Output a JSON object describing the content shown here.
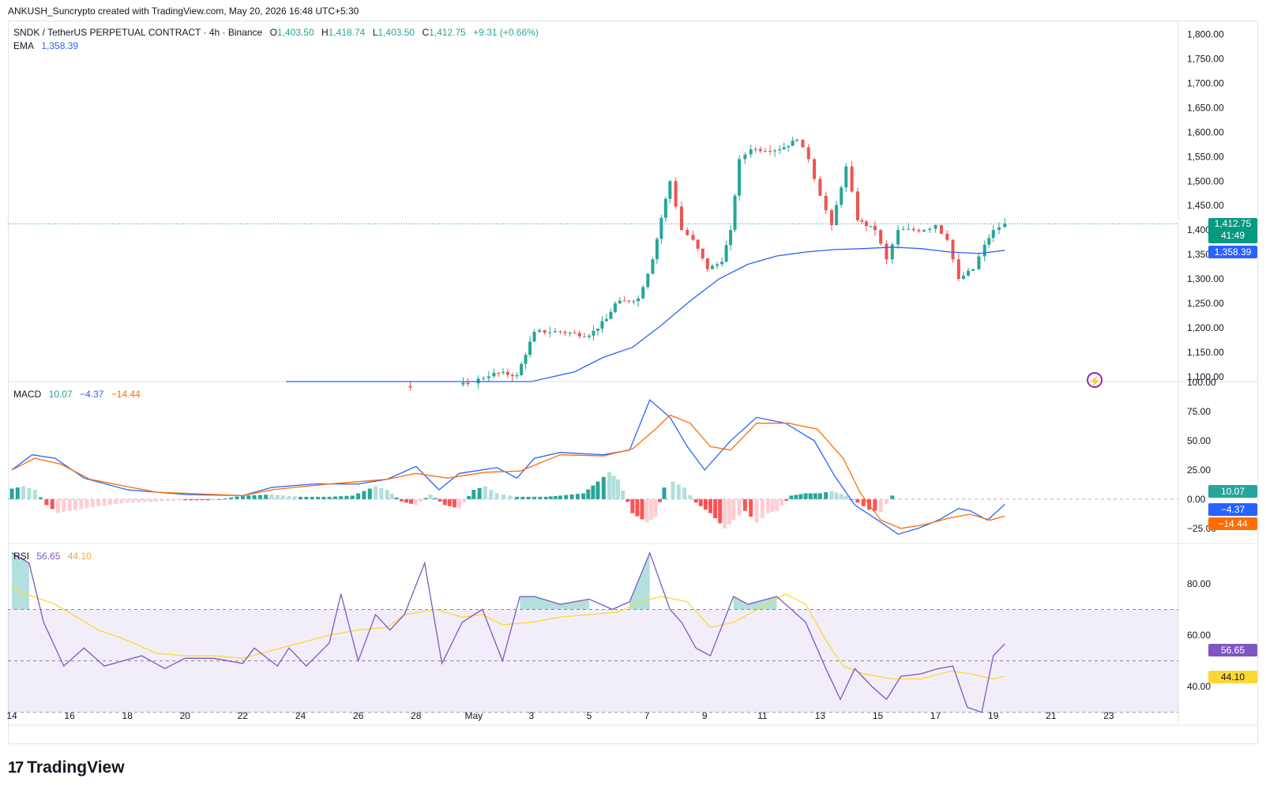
{
  "credit": "ANKUSH_Suncrypto created with TradingView.com, May 20, 2026 16:48 UTC+5:30",
  "header": {
    "symbol": "SNDK / TetherUS PERPETUAL CONTRACT · 4h · Binance",
    "o_label": "O",
    "o": "1,403.50",
    "h_label": "H",
    "h": "1,418.74",
    "l_label": "L",
    "l": "1,403.50",
    "c_label": "C",
    "c": "1,412.75",
    "change": "+9.31 (+0.66%)",
    "ema_label": "EMA",
    "ema_value": "1,358.39"
  },
  "macd_legend": {
    "label": "MACD",
    "hist": "10.07",
    "macd": "−4.37",
    "signal": "−14.44"
  },
  "rsi_legend": {
    "label": "RSI",
    "rsi": "56.65",
    "ma": "44.10"
  },
  "price_tags": {
    "last": "1,412.75",
    "countdown": "41:49",
    "ema": "1,358.39",
    "macd_hist": "10.07",
    "macd": "−4.37",
    "macd_signal": "−14.44",
    "rsi": "56.65",
    "rsi_ma": "44.10"
  },
  "colors": {
    "up": "#26a69a",
    "down": "#ef5350",
    "ema": "#2962ff",
    "macd": "#2962ff",
    "signal": "#ff6d00",
    "rsi": "#7e57c2",
    "rsi_ma": "#fdd835",
    "grid": "#f0f3fa",
    "axis_text": "#131722"
  },
  "brand": "TradingView",
  "chart_data": [
    {
      "type": "candlestick",
      "title": "SNDK / TetherUS PERPETUAL CONTRACT · 4h · Binance",
      "x_ticks": [
        "14",
        "16",
        "18",
        "20",
        "22",
        "24",
        "26",
        "28",
        "May",
        "3",
        "5",
        "7",
        "9",
        "11",
        "13",
        "15",
        "17",
        "19",
        "21",
        "23"
      ],
      "y_ticks": [
        "1,800.00",
        "1,750.00",
        "1,700.00",
        "1,650.00",
        "1,600.00",
        "1,550.00",
        "1,500.00",
        "1,450.00",
        "1,400.00",
        "1,350.00",
        "1,300.00",
        "1,250.00",
        "1,200.00",
        "1,150.00",
        "1,100.00"
      ],
      "ylim": [
        1090,
        1822
      ],
      "last_close": 1412.75,
      "segments": [
        {
          "day": 1.5,
          "open": 1040,
          "close": 1040,
          "dir": 0
        },
        {
          "day": 15.8,
          "open": 1075,
          "close": 1085,
          "dir": 0
        },
        {
          "day": 16.7,
          "open": 1085,
          "close": 1108,
          "dir": 1
        },
        {
          "day": 17.5,
          "open": 1108,
          "close": 1103,
          "dir": 0
        },
        {
          "day": 18.1,
          "open": 1103,
          "close": 1192,
          "dir": 1
        },
        {
          "day": 19.0,
          "open": 1192,
          "close": 1192,
          "dir": 0
        },
        {
          "day": 20.0,
          "open": 1192,
          "close": 1184,
          "dir": 0
        },
        {
          "day": 20.6,
          "open": 1184,
          "close": 1218,
          "dir": 1
        },
        {
          "day": 20.9,
          "open": 1218,
          "close": 1250,
          "dir": 1
        },
        {
          "day": 21.7,
          "open": 1250,
          "close": 1260,
          "dir": 0
        },
        {
          "day": 22.2,
          "open": 1260,
          "close": 1340,
          "dir": 1
        },
        {
          "day": 22.5,
          "open": 1340,
          "close": 1425,
          "dir": 1
        },
        {
          "day": 22.8,
          "open": 1425,
          "close": 1500,
          "dir": 1
        },
        {
          "day": 23.2,
          "open": 1500,
          "close": 1400,
          "dir": -1
        },
        {
          "day": 23.6,
          "open": 1400,
          "close": 1380,
          "dir": 0
        },
        {
          "day": 24.1,
          "open": 1380,
          "close": 1320,
          "dir": -1
        },
        {
          "day": 24.6,
          "open": 1320,
          "close": 1335,
          "dir": 1
        },
        {
          "day": 24.9,
          "open": 1335,
          "close": 1400,
          "dir": 1
        },
        {
          "day": 25.2,
          "open": 1400,
          "close": 1545,
          "dir": 1
        },
        {
          "day": 25.6,
          "open": 1545,
          "close": 1565,
          "dir": 1
        },
        {
          "day": 26.6,
          "open": 1565,
          "close": 1565,
          "dir": 0
        },
        {
          "day": 27.2,
          "open": 1565,
          "close": 1585,
          "dir": 1
        },
        {
          "day": 27.6,
          "open": 1585,
          "close": 1545,
          "dir": -1
        },
        {
          "day": 28.0,
          "open": 1545,
          "close": 1470,
          "dir": -1
        },
        {
          "day": 28.4,
          "open": 1470,
          "close": 1410,
          "dir": -1
        },
        {
          "day": 28.9,
          "open": 1410,
          "close": 1530,
          "dir": 1
        },
        {
          "day": 29.3,
          "open": 1530,
          "close": 1420,
          "dir": -1
        },
        {
          "day": 29.9,
          "open": 1420,
          "close": 1400,
          "dir": -1
        },
        {
          "day": 30.3,
          "open": 1400,
          "close": 1340,
          "dir": -1
        },
        {
          "day": 30.7,
          "open": 1340,
          "close": 1400,
          "dir": 1
        },
        {
          "day": 31.6,
          "open": 1400,
          "close": 1400,
          "dir": 0
        },
        {
          "day": 32.0,
          "open": 1400,
          "close": 1410,
          "dir": 1
        },
        {
          "day": 32.4,
          "open": 1410,
          "close": 1380,
          "dir": -1
        },
        {
          "day": 32.8,
          "open": 1380,
          "close": 1300,
          "dir": -1
        },
        {
          "day": 33.3,
          "open": 1300,
          "close": 1320,
          "dir": 0
        },
        {
          "day": 33.7,
          "open": 1320,
          "close": 1370,
          "dir": 1
        },
        {
          "day": 34.0,
          "open": 1370,
          "close": 1400,
          "dir": 1
        },
        {
          "day": 34.4,
          "open": 1400,
          "close": 1412.75,
          "dir": 1
        }
      ],
      "ema": [
        [
          9.5,
          1070
        ],
        [
          14,
          1070
        ],
        [
          18,
          1070
        ],
        [
          19.5,
          1110
        ],
        [
          20.5,
          1140
        ],
        [
          21.5,
          1160
        ],
        [
          22.5,
          1205
        ],
        [
          23.5,
          1255
        ],
        [
          24.5,
          1300
        ],
        [
          25.5,
          1330
        ],
        [
          26.5,
          1347
        ],
        [
          27.5,
          1355
        ],
        [
          28.5,
          1360
        ],
        [
          29.5,
          1362
        ],
        [
          30.5,
          1365
        ],
        [
          31.5,
          1362
        ],
        [
          32.5,
          1355
        ],
        [
          33.5,
          1352
        ],
        [
          34.4,
          1358.39
        ]
      ]
    },
    {
      "type": "macd",
      "y_ticks": [
        "100.00",
        "75.00",
        "50.00",
        "25.00",
        "0.00",
        "−25.00"
      ],
      "ylim": [
        -38,
        100
      ],
      "macd": [
        [
          0,
          25
        ],
        [
          0.7,
          38
        ],
        [
          1.5,
          35
        ],
        [
          2.5,
          18
        ],
        [
          4,
          8
        ],
        [
          6,
          4
        ],
        [
          8,
          3
        ],
        [
          9,
          10
        ],
        [
          10.5,
          13
        ],
        [
          12,
          13
        ],
        [
          13,
          17
        ],
        [
          14,
          28
        ],
        [
          14.8,
          8
        ],
        [
          15.5,
          22
        ],
        [
          16.8,
          27
        ],
        [
          17.5,
          18
        ],
        [
          18.1,
          35
        ],
        [
          19,
          40
        ],
        [
          20.5,
          38
        ],
        [
          21.4,
          42
        ],
        [
          22.1,
          85
        ],
        [
          22.8,
          70
        ],
        [
          23.4,
          45
        ],
        [
          24,
          25
        ],
        [
          24.9,
          50
        ],
        [
          25.8,
          70
        ],
        [
          26.8,
          65
        ],
        [
          27.8,
          50
        ],
        [
          28.5,
          20
        ],
        [
          29.2,
          -5
        ],
        [
          30.0,
          -18
        ],
        [
          30.7,
          -30
        ],
        [
          31.4,
          -25
        ],
        [
          32.1,
          -18
        ],
        [
          32.8,
          -8
        ],
        [
          33.2,
          -10
        ],
        [
          33.8,
          -18
        ],
        [
          34.4,
          -4.37
        ]
      ],
      "signal": [
        [
          0,
          25
        ],
        [
          0.8,
          35
        ],
        [
          1.7,
          30
        ],
        [
          2.7,
          17
        ],
        [
          5,
          6
        ],
        [
          8,
          3
        ],
        [
          9,
          8
        ],
        [
          11,
          13
        ],
        [
          13,
          17
        ],
        [
          14,
          22
        ],
        [
          15.1,
          18
        ],
        [
          16.4,
          23
        ],
        [
          17.6,
          24
        ],
        [
          19,
          38
        ],
        [
          20.5,
          37
        ],
        [
          21.5,
          43
        ],
        [
          22.3,
          60
        ],
        [
          22.8,
          72
        ],
        [
          23.5,
          65
        ],
        [
          24.2,
          45
        ],
        [
          24.9,
          42
        ],
        [
          25.8,
          65
        ],
        [
          26.9,
          65
        ],
        [
          27.9,
          60
        ],
        [
          28.8,
          35
        ],
        [
          29.4,
          5
        ],
        [
          30.1,
          -18
        ],
        [
          30.8,
          -25
        ],
        [
          31.6,
          -22
        ],
        [
          32.5,
          -16
        ],
        [
          33.2,
          -13
        ],
        [
          33.9,
          -18
        ],
        [
          34.4,
          -14.44
        ]
      ],
      "histogram": [
        [
          0,
          9
        ],
        [
          0.4,
          11
        ],
        [
          0.8,
          8
        ],
        [
          1.2,
          -5
        ],
        [
          1.6,
          -12
        ],
        [
          2.0,
          -10
        ],
        [
          3,
          -6
        ],
        [
          4,
          -3
        ],
        [
          5,
          -2
        ],
        [
          6,
          -1
        ],
        [
          7,
          -1
        ],
        [
          8,
          3
        ],
        [
          9,
          4
        ],
        [
          10,
          2
        ],
        [
          11,
          2
        ],
        [
          11.8,
          3
        ],
        [
          12.2,
          7
        ],
        [
          12.6,
          11
        ],
        [
          13.0,
          8
        ],
        [
          13.5,
          -2
        ],
        [
          14.0,
          -5
        ],
        [
          14.5,
          4
        ],
        [
          15.0,
          -5
        ],
        [
          15.5,
          -8
        ],
        [
          16.0,
          8
        ],
        [
          16.4,
          11
        ],
        [
          16.8,
          5
        ],
        [
          17.5,
          2
        ],
        [
          18.5,
          2
        ],
        [
          19.0,
          3
        ],
        [
          19.8,
          5
        ],
        [
          20.3,
          15
        ],
        [
          20.7,
          23
        ],
        [
          21.0,
          17
        ],
        [
          21.5,
          -12
        ],
        [
          22,
          -20
        ],
        [
          22.3,
          -15
        ],
        [
          22.6,
          10
        ],
        [
          22.9,
          15
        ],
        [
          23.3,
          10
        ],
        [
          23.7,
          -3
        ],
        [
          24.2,
          -12
        ],
        [
          24.7,
          -25
        ],
        [
          25.0,
          -18
        ],
        [
          25.4,
          -10
        ],
        [
          25.8,
          -20
        ],
        [
          26.2,
          -12
        ],
        [
          26.5,
          -10
        ],
        [
          27.0,
          3
        ],
        [
          27.5,
          5
        ],
        [
          28.0,
          5
        ],
        [
          28.4,
          7
        ],
        [
          28.9,
          3
        ],
        [
          29.3,
          -3
        ],
        [
          29.7,
          -9
        ],
        [
          30.1,
          -11
        ],
        [
          30.7,
          10.07
        ]
      ]
    },
    {
      "type": "line",
      "title": "RSI",
      "y_ticks": [
        "80.00",
        "60.00",
        "40.00"
      ],
      "ylim": [
        25,
        95
      ],
      "rsi": [
        [
          0,
          92
        ],
        [
          0.6,
          88
        ],
        [
          1.1,
          65
        ],
        [
          1.8,
          48
        ],
        [
          2.5,
          55
        ],
        [
          3.2,
          48
        ],
        [
          4.5,
          52
        ],
        [
          5.3,
          47
        ],
        [
          6,
          51
        ],
        [
          7,
          51
        ],
        [
          8,
          49
        ],
        [
          8.4,
          55
        ],
        [
          9.2,
          48
        ],
        [
          9.6,
          55
        ],
        [
          10.2,
          48
        ],
        [
          11,
          57
        ],
        [
          11.4,
          76
        ],
        [
          12,
          50
        ],
        [
          12.6,
          68
        ],
        [
          13.1,
          62
        ],
        [
          13.6,
          68
        ],
        [
          14.3,
          88
        ],
        [
          14.9,
          49
        ],
        [
          15.6,
          65
        ],
        [
          16.3,
          70
        ],
        [
          17.0,
          50
        ],
        [
          17.6,
          75
        ],
        [
          18.1,
          75
        ],
        [
          19,
          72
        ],
        [
          20.0,
          74
        ],
        [
          20.8,
          70
        ],
        [
          21.4,
          73
        ],
        [
          22.1,
          92
        ],
        [
          22.8,
          70
        ],
        [
          23.2,
          65
        ],
        [
          23.7,
          55
        ],
        [
          24.2,
          52
        ],
        [
          25.0,
          75
        ],
        [
          25.5,
          72
        ],
        [
          26.5,
          75
        ],
        [
          27.5,
          65
        ],
        [
          28.2,
          47
        ],
        [
          28.7,
          35
        ],
        [
          29.2,
          47
        ],
        [
          29.8,
          40
        ],
        [
          30.3,
          35
        ],
        [
          30.8,
          44
        ],
        [
          31.5,
          45
        ],
        [
          32.1,
          47
        ],
        [
          32.6,
          48
        ],
        [
          33.1,
          32
        ],
        [
          33.6,
          30
        ],
        [
          34.0,
          52
        ],
        [
          34.4,
          56.65
        ]
      ],
      "rsi_ma": [
        [
          0,
          78
        ],
        [
          1.5,
          72
        ],
        [
          3,
          62
        ],
        [
          4,
          58
        ],
        [
          5,
          53
        ],
        [
          6,
          52
        ],
        [
          7,
          52
        ],
        [
          8,
          51
        ],
        [
          9,
          54
        ],
        [
          10,
          57
        ],
        [
          11,
          60
        ],
        [
          12,
          62
        ],
        [
          13,
          63
        ],
        [
          13.6,
          68
        ],
        [
          14.7,
          70
        ],
        [
          15.6,
          67
        ],
        [
          16.3,
          68
        ],
        [
          17,
          64
        ],
        [
          18,
          65
        ],
        [
          19,
          67
        ],
        [
          20,
          68
        ],
        [
          21,
          69
        ],
        [
          21.8,
          73
        ],
        [
          22.5,
          75
        ],
        [
          23.4,
          73
        ],
        [
          24.2,
          63
        ],
        [
          25.0,
          65
        ],
        [
          26,
          71
        ],
        [
          26.8,
          76
        ],
        [
          27.5,
          72
        ],
        [
          28.2,
          58
        ],
        [
          28.8,
          48
        ],
        [
          29.5,
          45
        ],
        [
          30.5,
          43
        ],
        [
          31.5,
          43
        ],
        [
          32.5,
          46
        ],
        [
          33.2,
          45
        ],
        [
          34.0,
          43
        ],
        [
          34.4,
          44.1
        ]
      ],
      "overbought": 70,
      "oversold": 30,
      "midline": 50
    }
  ]
}
